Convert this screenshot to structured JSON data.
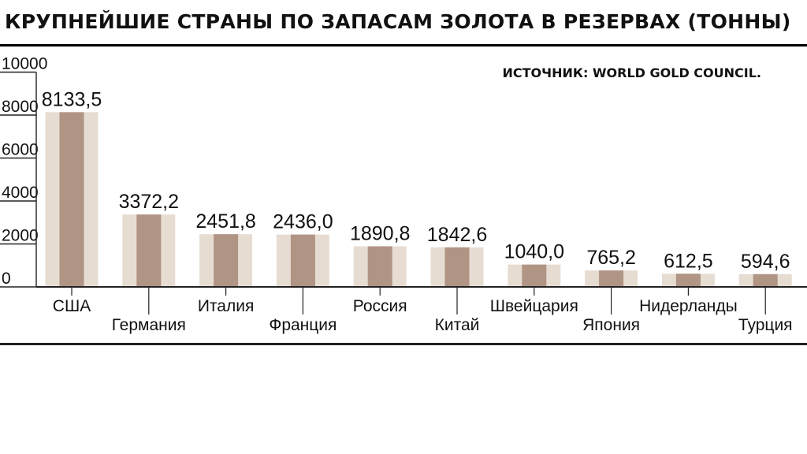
{
  "header": {
    "title": "КРУПНЕЙШИЕ СТРАНЫ ПО ЗАПАСАМ ЗОЛОТА В РЕЗЕРВАХ (ТОННЫ)"
  },
  "source_note": "ИСТОЧНИК: WORLD GOLD COUNCIL.",
  "colors": {
    "bar_outer": "#e6dcd2",
    "bar_inner": "#b09484",
    "axis": "#222222"
  },
  "chart_data": {
    "type": "bar",
    "title": "КРУПНЕЙШИЕ СТРАНЫ ПО ЗАПАСАМ ЗОЛОТА В РЕЗЕРВАХ (ТОННЫ)",
    "categories": [
      "США",
      "Германия",
      "Италия",
      "Франция",
      "Россия",
      "Китай",
      "Швейцария",
      "Япония",
      "Нидерланды",
      "Турция"
    ],
    "values": [
      8133.5,
      3372.2,
      2451.8,
      2436.0,
      1890.8,
      1842.6,
      1040.0,
      765.2,
      612.5,
      594.6
    ],
    "value_labels": [
      "8133,5",
      "3372,2",
      "2451,8",
      "2436,0",
      "1890,8",
      "1842,6",
      "1040,0",
      "765,2",
      "612,5",
      "594,6"
    ],
    "y_ticks": [
      0,
      2000,
      4000,
      6000,
      8000,
      10000
    ],
    "ylim": [
      0,
      10000
    ],
    "xlabel": "",
    "ylabel": "",
    "grid": false,
    "legend": "none",
    "label_stagger": true
  }
}
